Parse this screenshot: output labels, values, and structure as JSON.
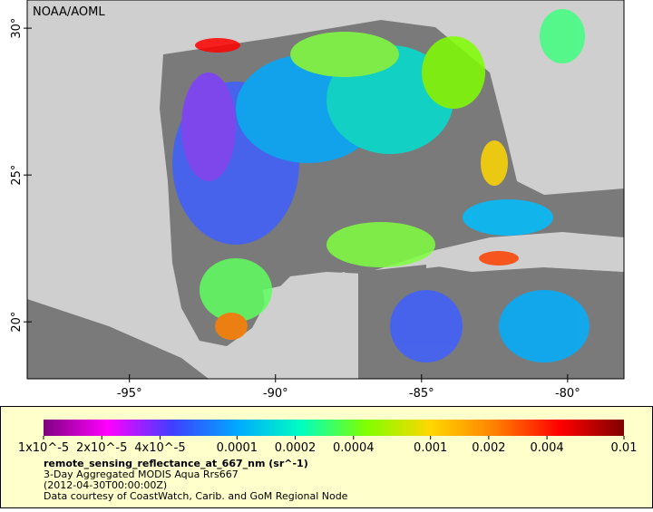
{
  "map": {
    "attribution": "NOAA/AOML",
    "xlim": [
      -98.5,
      -78.07
    ],
    "ylim": [
      18.06,
      30.96
    ],
    "xticks": [
      {
        "value": -95,
        "label": "-95°"
      },
      {
        "value": -90,
        "label": "-90°"
      },
      {
        "value": -85,
        "label": "-85°"
      },
      {
        "value": -80,
        "label": "-80°"
      }
    ],
    "yticks": [
      {
        "value": 20,
        "label": "20°"
      },
      {
        "value": 25,
        "label": "25°"
      },
      {
        "value": 30,
        "label": "30°"
      }
    ]
  },
  "colorbar": {
    "scale": "log",
    "lim": [
      1e-05,
      0.01
    ],
    "colors": [
      "#7f007f",
      "#ff00ff",
      "#3f3fff",
      "#00a8ff",
      "#00ffc0",
      "#7fff00",
      "#ffd700",
      "#ff8000",
      "#ff0000",
      "#7f0000"
    ],
    "ticks": [
      {
        "value": 1e-05,
        "label": "1x10^-5"
      },
      {
        "value": 2e-05,
        "label": "2x10^-5"
      },
      {
        "value": 4e-05,
        "label": "4x10^-5"
      },
      0.0001,
      0.0002,
      0.0004,
      0.001,
      0.002,
      0.004,
      0.01
    ]
  },
  "caption": {
    "variable": "remote_sensing_reflectance_at_667_nm (sr^-1)",
    "dataset": "3-Day Aggregated MODIS Aqua Rrs667",
    "time": "(2012-04-30T00:00:00Z)",
    "credit": "Data courtesy of CoastWatch, Carib. and GoM Regional Node"
  }
}
